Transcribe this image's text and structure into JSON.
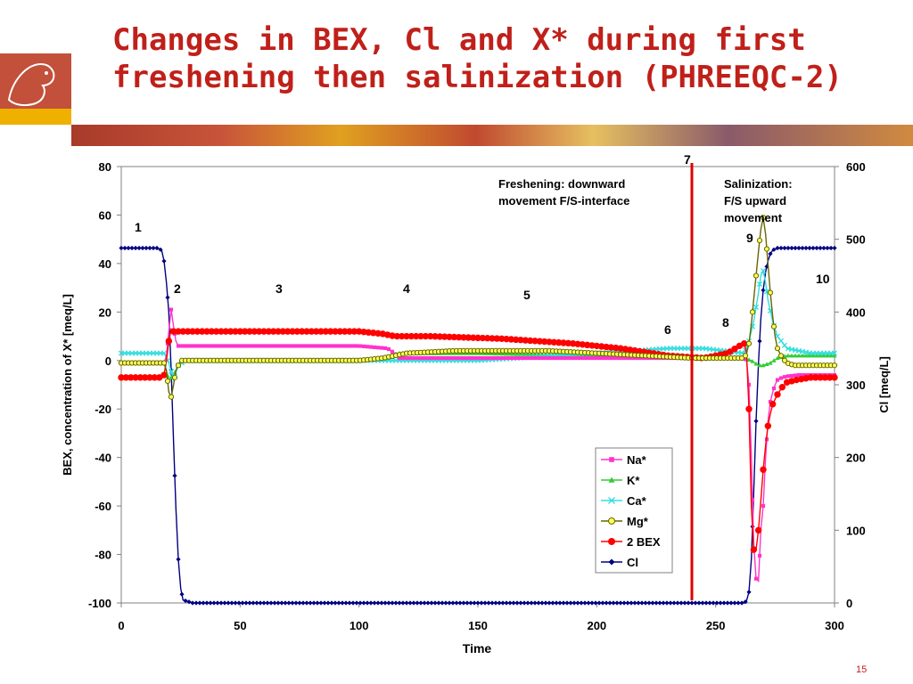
{
  "slide": {
    "title_line1": "Changes in BEX, Cl and X* during first",
    "title_line2": "freshening then salinization (PHREEQC-2)",
    "page_number": "15"
  },
  "chart_data": {
    "type": "line",
    "xlabel": "Time",
    "ylabel": "BEX, concentration of X* [meq/L]",
    "y2label": "Cl  [meq/L]",
    "xlim": [
      0,
      300
    ],
    "ylim": [
      -100,
      80
    ],
    "y2lim": [
      0,
      600
    ],
    "xticks": [
      "0",
      "50",
      "100",
      "150",
      "200",
      "250",
      "300"
    ],
    "yticks": [
      "-100",
      "-80",
      "-60",
      "-40",
      "-20",
      "0",
      "20",
      "40",
      "60",
      "80"
    ],
    "y2ticks": [
      "0",
      "100",
      "200",
      "300",
      "400",
      "500",
      "600"
    ],
    "grid": false,
    "legend_position": "bottom-center",
    "colors": {
      "Na*": "#ff33cc",
      "K*": "#33cc33",
      "Ca*": "#33dddd",
      "Mg*": "#ffff55",
      "Mg*_edge": "#666600",
      "2 BEX": "#ff0000",
      "Cl": "#000080",
      "divider": "#e00000"
    },
    "series": [
      {
        "name": "Na*",
        "axis": "left",
        "marker": "square",
        "x": [
          0,
          18,
          19,
          20,
          21,
          22,
          23,
          24,
          30,
          100,
          112,
          115,
          117,
          150,
          200,
          240,
          262,
          263,
          264,
          265,
          266,
          267,
          268,
          269,
          270,
          271,
          272,
          273,
          274,
          275,
          276,
          278,
          280,
          285,
          300
        ],
        "y": [
          -1,
          -1,
          2,
          12,
          21,
          14,
          8,
          6,
          6,
          6,
          5,
          3,
          1,
          1,
          1,
          1,
          1,
          0,
          -10,
          -40,
          -75,
          -90,
          -91,
          -70,
          -60,
          -40,
          -25,
          -17,
          -13,
          -10,
          -8,
          -7,
          -6.5,
          -6,
          -6
        ]
      },
      {
        "name": "K*",
        "axis": "left",
        "marker": "triangle",
        "x": [
          0,
          18,
          20,
          22,
          24,
          26,
          100,
          112,
          116,
          120,
          150,
          200,
          262,
          265,
          268,
          270,
          273,
          276,
          280,
          300
        ],
        "y": [
          -1,
          -1,
          -8,
          -6,
          -2,
          0,
          0,
          1,
          3,
          3,
          3,
          2,
          1,
          0,
          -2,
          -2,
          -1,
          1,
          2,
          2
        ]
      },
      {
        "name": "Ca*",
        "axis": "left",
        "marker": "x",
        "x": [
          0,
          18,
          20,
          22,
          24,
          27,
          100,
          115,
          150,
          200,
          230,
          245,
          262,
          264,
          266,
          268,
          269,
          270,
          271,
          272,
          274,
          276,
          280,
          290,
          300
        ],
        "y": [
          3,
          3,
          -1,
          -8,
          -2,
          0,
          0,
          0,
          0,
          3,
          5,
          5,
          3,
          8,
          16,
          28,
          35,
          37,
          32,
          25,
          16,
          10,
          5,
          3,
          3
        ]
      },
      {
        "name": "Mg*",
        "axis": "left",
        "marker": "circle",
        "x": [
          0,
          18,
          19,
          20,
          21,
          22,
          23,
          25,
          30,
          100,
          110,
          120,
          140,
          160,
          180,
          200,
          220,
          240,
          255,
          262,
          263,
          264,
          265,
          266,
          267,
          268,
          269,
          270,
          271,
          272,
          273,
          274,
          275,
          276,
          278,
          280,
          283,
          287,
          300
        ],
        "y": [
          -1,
          -1,
          -4,
          -13,
          -15,
          -10,
          -4,
          0,
          0,
          0,
          1,
          3,
          4,
          4,
          4,
          3,
          2,
          1,
          1,
          1,
          3,
          7,
          15,
          25,
          35,
          45,
          54,
          59,
          52,
          40,
          28,
          18,
          10,
          5,
          1,
          -1,
          -2,
          -2,
          -2
        ]
      },
      {
        "name": "2 BEX",
        "axis": "left",
        "marker": "circle",
        "x": [
          0,
          17,
          18,
          19,
          20,
          21,
          22,
          24,
          30,
          60,
          100,
          110,
          115,
          130,
          160,
          190,
          210,
          230,
          245,
          255,
          260,
          262,
          263,
          264,
          265,
          266,
          267,
          268,
          269,
          270,
          271,
          272,
          273,
          274,
          276,
          278,
          280,
          284,
          290,
          300
        ],
        "y": [
          -7,
          -7,
          -6,
          0,
          8,
          13,
          12,
          12,
          12,
          12,
          12,
          11,
          10,
          10,
          9,
          7,
          5,
          2,
          1,
          3,
          6,
          7,
          3,
          -20,
          -60,
          -78,
          -78,
          -70,
          -58,
          -45,
          -35,
          -27,
          -22,
          -18,
          -14,
          -11,
          -9,
          -8,
          -7,
          -7
        ]
      },
      {
        "name": "Cl",
        "axis": "right",
        "marker": "diamond",
        "x": [
          0,
          15,
          17,
          18,
          19,
          20,
          21,
          22,
          23,
          24,
          25,
          26,
          30,
          100,
          200,
          262,
          263,
          264,
          265,
          266,
          267,
          268,
          269,
          270,
          271,
          272,
          273,
          274,
          276,
          280,
          300
        ],
        "y": [
          488,
          488,
          485,
          470,
          440,
          400,
          320,
          220,
          130,
          60,
          20,
          4,
          0,
          0,
          0,
          0,
          3,
          15,
          60,
          150,
          250,
          330,
          390,
          430,
          455,
          470,
          480,
          485,
          488,
          488,
          488
        ]
      }
    ],
    "divider_x": 240,
    "annotations": [
      {
        "id": "phase-1",
        "text": "1"
      },
      {
        "id": "phase-2",
        "text": "2"
      },
      {
        "id": "phase-3",
        "text": "3"
      },
      {
        "id": "phase-4",
        "text": "4"
      },
      {
        "id": "phase-5",
        "text": "5"
      },
      {
        "id": "phase-6",
        "text": "6"
      },
      {
        "id": "phase-7",
        "text": "7"
      },
      {
        "id": "phase-8",
        "text": "8"
      },
      {
        "id": "phase-9",
        "text": "9"
      },
      {
        "id": "phase-10",
        "text": "10"
      },
      {
        "id": "freshening-note-line1",
        "text": "Freshening: downward"
      },
      {
        "id": "freshening-note-line2",
        "text": "movement F/S-interface"
      },
      {
        "id": "salinization-note-line1",
        "text": "Salinization:"
      },
      {
        "id": "salinization-note-line2",
        "text": "F/S upward"
      },
      {
        "id": "salinization-note-line3",
        "text": "movement"
      }
    ]
  }
}
